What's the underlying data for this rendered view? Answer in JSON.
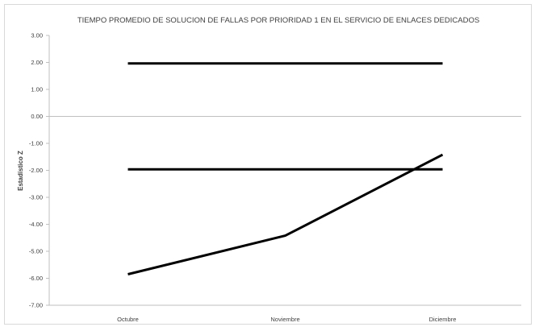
{
  "chart_data": {
    "type": "line",
    "title": "TIEMPO PROMEDIO DE SOLUCION DE FALLAS POR PRIORIDAD 1 EN EL SERVICIO DE ENLACES DEDICADOS",
    "xlabel": "",
    "ylabel": "Estadístico  Z",
    "categories": [
      "Octubre",
      "Noviembre",
      "Diciembre"
    ],
    "ylim": [
      -7,
      3
    ],
    "yticks": [
      "3.00",
      "2.00",
      "1.00",
      "0.00",
      "-1.00",
      "-2.00",
      "-3.00",
      "-4.00",
      "-5.00",
      "-6.00",
      "-7.00"
    ],
    "grid": false,
    "legend": "none",
    "series": [
      {
        "values": [
          1.96,
          1.96,
          1.96
        ]
      },
      {
        "values": [
          -1.96,
          -1.96,
          -1.96
        ]
      },
      {
        "values": [
          -5.85,
          -4.42,
          -1.42
        ]
      }
    ],
    "colors": {
      "line": "#000000",
      "axis": "#bfbfbf",
      "text": "#404040"
    }
  }
}
